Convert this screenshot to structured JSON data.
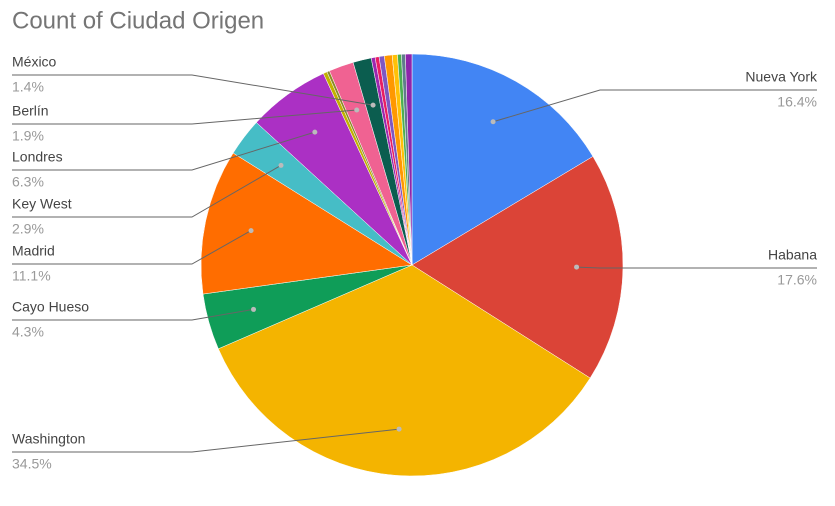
{
  "chart_data": {
    "type": "pie",
    "title": "Count of Ciudad Origen",
    "categories": [
      "Nueva York",
      "Habana",
      "Washington",
      "Cayo Hueso",
      "Madrid",
      "Key West",
      "Londres",
      null,
      null,
      "Berlín",
      "México",
      null,
      null,
      null,
      null,
      null,
      null,
      null,
      null
    ],
    "values": [
      16.4,
      17.6,
      34.5,
      4.3,
      11.1,
      2.9,
      6.3,
      0.3,
      0.2,
      1.9,
      1.4,
      0.3,
      0.3,
      0.4,
      0.6,
      0.4,
      0.3,
      0.3,
      0.5
    ],
    "value_labels": [
      "16.4%",
      "17.6%",
      "34.5%",
      "4.3%",
      "11.1%",
      "2.9%",
      "6.3%",
      null,
      null,
      "1.9%",
      "1.4%",
      null,
      null,
      null,
      null,
      null,
      null,
      null,
      null
    ],
    "colors": [
      "#4285f4",
      "#db4437",
      "#f4b400",
      "#0f9d58",
      "#ff6d00",
      "#46bdc6",
      "#ab30c4",
      "#c2b200",
      "#8a8a2a",
      "#f06292",
      "#0b5d4f",
      "#9c27b0",
      "#e91e63",
      "#7e57c2",
      "#ff9800",
      "#ffc107",
      "#4caf50",
      "#607d8b",
      "#8e24aa"
    ]
  }
}
